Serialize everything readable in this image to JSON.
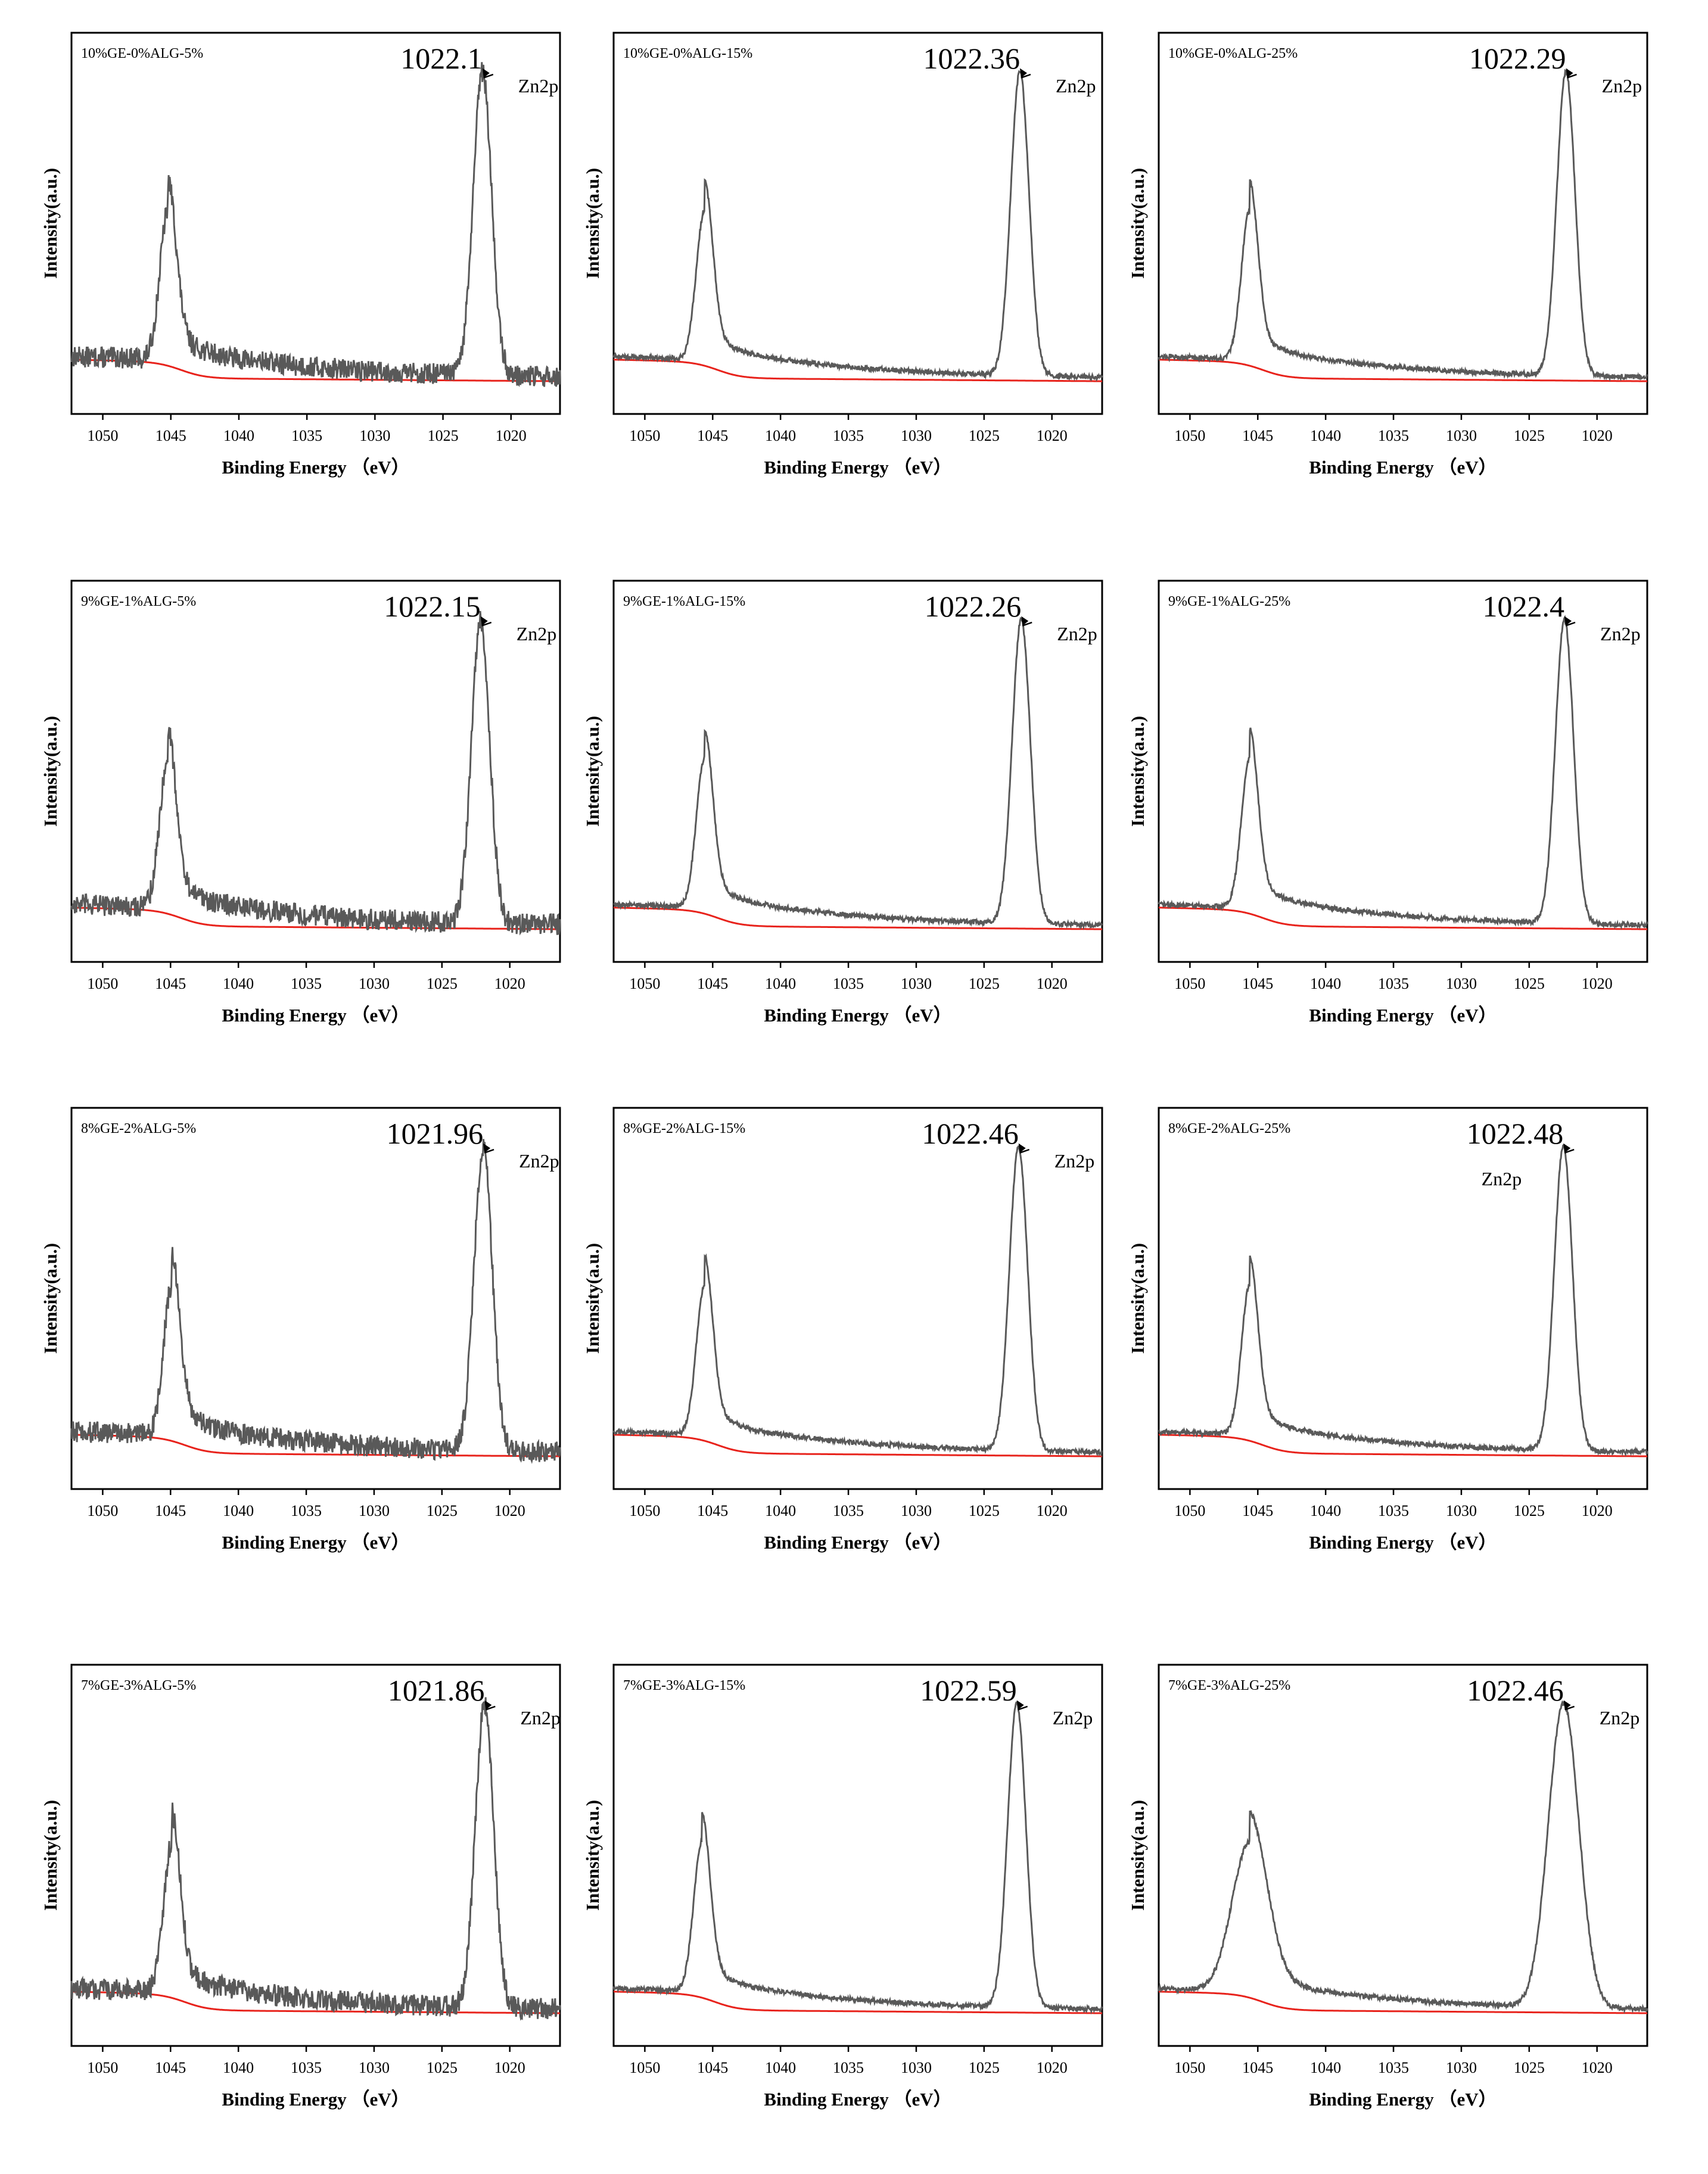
{
  "figure": {
    "x_tick_labels": [
      "1050",
      "1045",
      "1040",
      "1035",
      "1030",
      "1025",
      "1020"
    ],
    "xlabel": "Binding Energy （eV）",
    "ylabel": "Intensity(a.u.)"
  },
  "colors": {
    "spectrum": "#595959",
    "background": "#e8231c",
    "axis": "#000000"
  },
  "chart_data": [
    {
      "type": "line",
      "title": "10%GE-0%ALG-5%",
      "peak_label": "1022.1",
      "species_label": "Zn2p",
      "peak_x": 1022.1,
      "xlim": [
        1052.3,
        1016.4
      ],
      "xlabel": "Binding Energy （eV）",
      "ylabel": "Intensity(a.u.)",
      "peak_height": 1.0,
      "secondary_peak_x": 1045.2,
      "secondary_peak_height": 0.5,
      "baseline_left": 0.12,
      "baseline_right": 0.03,
      "noise": "high"
    },
    {
      "type": "line",
      "title": "10%GE-0%ALG-15%",
      "peak_label": "1022.36",
      "species_label": "Zn2p",
      "peak_x": 1022.36,
      "xlim": [
        1052.3,
        1016.3
      ],
      "xlabel": "Binding Energy （eV）",
      "ylabel": "Intensity(a.u.)",
      "peak_height": 1.0,
      "secondary_peak_x": 1045.6,
      "secondary_peak_height": 0.5,
      "baseline_left": 0.12,
      "baseline_right": 0.03,
      "noise": "low"
    },
    {
      "type": "line",
      "title": "10%GE-0%ALG-25%",
      "peak_label": "1022.29",
      "species_label": "Zn2p",
      "peak_x": 1022.29,
      "xlim": [
        1052.3,
        1016.3
      ],
      "xlabel": "Binding Energy （eV）",
      "ylabel": "Intensity(a.u.)",
      "peak_height": 1.0,
      "secondary_peak_x": 1045.6,
      "secondary_peak_height": 0.5,
      "baseline_left": 0.12,
      "baseline_right": 0.03,
      "noise": "low"
    },
    {
      "type": "line",
      "title": "9%GE-1%ALG-5%",
      "peak_label": "1022.15",
      "species_label": "Zn2p",
      "peak_x": 1022.15,
      "xlim": [
        1052.3,
        1016.3
      ],
      "xlabel": "Binding Energy （eV）",
      "ylabel": "Intensity(a.u.)",
      "peak_height": 1.0,
      "secondary_peak_x": 1045.2,
      "secondary_peak_height": 0.5,
      "baseline_left": 0.12,
      "baseline_right": 0.03,
      "noise": "high"
    },
    {
      "type": "line",
      "title": "9%GE-1%ALG-15%",
      "peak_label": "1022.26",
      "species_label": "Zn2p",
      "peak_x": 1022.26,
      "xlim": [
        1052.3,
        1016.3
      ],
      "xlabel": "Binding Energy （eV）",
      "ylabel": "Intensity(a.u.)",
      "peak_height": 1.0,
      "secondary_peak_x": 1045.6,
      "secondary_peak_height": 0.5,
      "baseline_left": 0.12,
      "baseline_right": 0.03,
      "noise": "low"
    },
    {
      "type": "line",
      "title": "9%GE-1%ALG-25%",
      "peak_label": "1022.4",
      "species_label": "Zn2p",
      "peak_x": 1022.4,
      "xlim": [
        1052.3,
        1016.3
      ],
      "xlabel": "Binding Energy （eV）",
      "ylabel": "Intensity(a.u.)",
      "peak_height": 1.0,
      "secondary_peak_x": 1045.6,
      "secondary_peak_height": 0.5,
      "baseline_left": 0.12,
      "baseline_right": 0.03,
      "noise": "low"
    },
    {
      "type": "line",
      "title": "8%GE-2%ALG-5%",
      "peak_label": "1021.96",
      "species_label": "Zn2p",
      "peak_x": 1021.96,
      "xlim": [
        1052.3,
        1016.3
      ],
      "xlabel": "Binding Energy （eV）",
      "ylabel": "Intensity(a.u.)",
      "peak_height": 1.0,
      "secondary_peak_x": 1044.9,
      "secondary_peak_height": 0.5,
      "baseline_left": 0.12,
      "baseline_right": 0.03,
      "noise": "high"
    },
    {
      "type": "line",
      "title": "8%GE-2%ALG-15%",
      "peak_label": "1022.46",
      "species_label": "Zn2p",
      "peak_x": 1022.46,
      "xlim": [
        1052.3,
        1016.3
      ],
      "xlabel": "Binding Energy （eV）",
      "ylabel": "Intensity(a.u.)",
      "peak_height": 1.0,
      "secondary_peak_x": 1045.6,
      "secondary_peak_height": 0.5,
      "baseline_left": 0.12,
      "baseline_right": 0.03,
      "noise": "low"
    },
    {
      "type": "line",
      "title": "8%GE-2%ALG-25%",
      "peak_label": "1022.48",
      "species_label": "Zn2p",
      "peak_x": 1022.48,
      "xlim": [
        1052.3,
        1016.3
      ],
      "xlabel": "Binding Energy （eV）",
      "ylabel": "Intensity(a.u.)",
      "peak_height": 1.0,
      "secondary_peak_x": 1045.6,
      "secondary_peak_height": 0.5,
      "baseline_left": 0.12,
      "baseline_right": 0.03,
      "noise": "low",
      "species_label_side": "left"
    },
    {
      "type": "line",
      "title": "7%GE-3%ALG-5%",
      "peak_label": "1021.86",
      "species_label": "Zn2p",
      "peak_x": 1021.86,
      "xlim": [
        1052.3,
        1016.3
      ],
      "xlabel": "Binding Energy （eV）",
      "ylabel": "Intensity(a.u.)",
      "peak_height": 1.0,
      "secondary_peak_x": 1044.9,
      "secondary_peak_height": 0.5,
      "baseline_left": 0.12,
      "baseline_right": 0.03,
      "noise": "high"
    },
    {
      "type": "line",
      "title": "7%GE-3%ALG-15%",
      "peak_label": "1022.59",
      "species_label": "Zn2p",
      "peak_x": 1022.59,
      "xlim": [
        1052.3,
        1016.3
      ],
      "xlabel": "Binding Energy （eV）",
      "ylabel": "Intensity(a.u.)",
      "peak_height": 1.0,
      "secondary_peak_x": 1045.8,
      "secondary_peak_height": 0.5,
      "baseline_left": 0.12,
      "baseline_right": 0.03,
      "noise": "low"
    },
    {
      "type": "line",
      "title": "7%GE-3%ALG-25%",
      "peak_label": "1022.46",
      "species_label": "Zn2p",
      "peak_x": 1022.46,
      "xlim": [
        1052.3,
        1016.3
      ],
      "xlabel": "Binding Energy （eV）",
      "ylabel": "Intensity(a.u.)",
      "peak_height": 1.0,
      "secondary_peak_x": 1045.6,
      "secondary_peak_height": 0.5,
      "baseline_left": 0.12,
      "baseline_right": 0.03,
      "noise": "low",
      "broad": true
    }
  ]
}
